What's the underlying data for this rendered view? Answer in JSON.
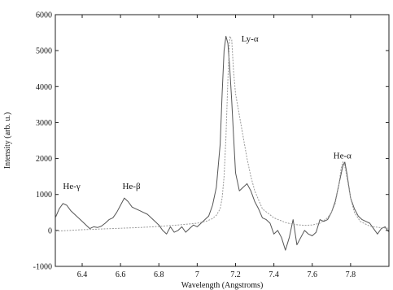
{
  "chart_data": {
    "type": "line",
    "xlabel": "Wavelength (Angstroms)",
    "ylabel": "Intensity (arb. u.)",
    "xlim": [
      6.26,
      8.0
    ],
    "ylim": [
      -1000,
      6000
    ],
    "x_ticks": [
      6.4,
      6.6,
      6.8,
      7.0,
      7.2,
      7.4,
      7.6,
      7.8
    ],
    "x_tick_labels": [
      "6.4",
      "6.6",
      "6.8",
      "7",
      "7.2",
      "7.4",
      "7.6",
      "7.8"
    ],
    "y_ticks": [
      -1000,
      0,
      1000,
      2000,
      3000,
      4000,
      5000,
      6000
    ],
    "y_tick_labels": [
      "-1000",
      "0",
      "1000",
      "2000",
      "3000",
      "4000",
      "5000",
      "6000"
    ],
    "grid": false,
    "annotations": [
      {
        "text": "He-γ",
        "x": 6.3,
        "y": 1150
      },
      {
        "text": "He-β",
        "x": 6.61,
        "y": 1150
      },
      {
        "text": "Ly-α",
        "x": 7.23,
        "y": 5250
      },
      {
        "text": "He-α",
        "x": 7.71,
        "y": 2000
      }
    ],
    "series": [
      {
        "x": [
          6.26,
          6.28,
          6.3,
          6.32,
          6.34,
          6.36,
          6.38,
          6.4,
          6.42,
          6.44,
          6.46,
          6.48,
          6.5,
          6.52,
          6.54,
          6.56,
          6.58,
          6.6,
          6.62,
          6.64,
          6.66,
          6.68,
          6.7,
          6.72,
          6.74,
          6.76,
          6.78,
          6.8,
          6.82,
          6.84,
          6.86,
          6.88,
          6.9,
          6.92,
          6.94,
          6.96,
          6.98,
          7.0,
          7.02,
          7.04,
          7.06,
          7.08,
          7.1,
          7.12,
          7.13,
          7.14,
          7.15,
          7.16,
          7.17,
          7.18,
          7.19,
          7.2,
          7.22,
          7.24,
          7.26,
          7.28,
          7.3,
          7.32,
          7.34,
          7.36,
          7.38,
          7.4,
          7.42,
          7.44,
          7.46,
          7.48,
          7.5,
          7.52,
          7.54,
          7.56,
          7.58,
          7.6,
          7.62,
          7.64,
          7.66,
          7.68,
          7.7,
          7.72,
          7.74,
          7.76,
          7.77,
          7.78,
          7.8,
          7.82,
          7.84,
          7.86,
          7.88,
          7.9,
          7.92,
          7.94,
          7.96,
          7.98,
          8.0
        ],
        "values": [
          350,
          600,
          750,
          700,
          550,
          450,
          350,
          250,
          150,
          50,
          100,
          80,
          120,
          200,
          300,
          350,
          500,
          700,
          900,
          800,
          650,
          600,
          550,
          500,
          450,
          350,
          250,
          150,
          0,
          -100,
          100,
          -50,
          0,
          100,
          -50,
          50,
          150,
          100,
          200,
          300,
          400,
          700,
          1200,
          2400,
          3800,
          5000,
          5400,
          5200,
          4500,
          3600,
          2600,
          1600,
          1100,
          1200,
          1300,
          1100,
          800,
          600,
          350,
          300,
          200,
          -100,
          0,
          -200,
          -550,
          -200,
          300,
          -400,
          -200,
          0,
          -100,
          -150,
          -50,
          300,
          250,
          300,
          500,
          800,
          1300,
          1800,
          1900,
          1600,
          900,
          600,
          400,
          300,
          250,
          200,
          50,
          -100,
          50,
          100,
          -50
        ]
      },
      {
        "x": [
          6.26,
          6.3,
          6.4,
          6.5,
          6.6,
          6.7,
          6.8,
          6.9,
          7.0,
          7.05,
          7.08,
          7.1,
          7.12,
          7.13,
          7.14,
          7.15,
          7.16,
          7.17,
          7.18,
          7.19,
          7.2,
          7.22,
          7.24,
          7.26,
          7.28,
          7.3,
          7.34,
          7.4,
          7.46,
          7.5,
          7.56,
          7.6,
          7.64,
          7.68,
          7.7,
          7.72,
          7.74,
          7.75,
          7.76,
          7.77,
          7.78,
          7.8,
          7.82,
          7.85,
          7.9,
          7.95,
          8.0
        ],
        "values": [
          -20,
          -10,
          20,
          40,
          60,
          80,
          110,
          150,
          200,
          260,
          330,
          420,
          600,
          900,
          1500,
          2600,
          4200,
          5400,
          5300,
          4400,
          3800,
          3200,
          2600,
          2000,
          1500,
          1100,
          600,
          350,
          220,
          170,
          140,
          150,
          200,
          350,
          500,
          750,
          1300,
          1700,
          1900,
          1800,
          1500,
          900,
          500,
          250,
          120,
          80,
          60
        ]
      }
    ]
  }
}
